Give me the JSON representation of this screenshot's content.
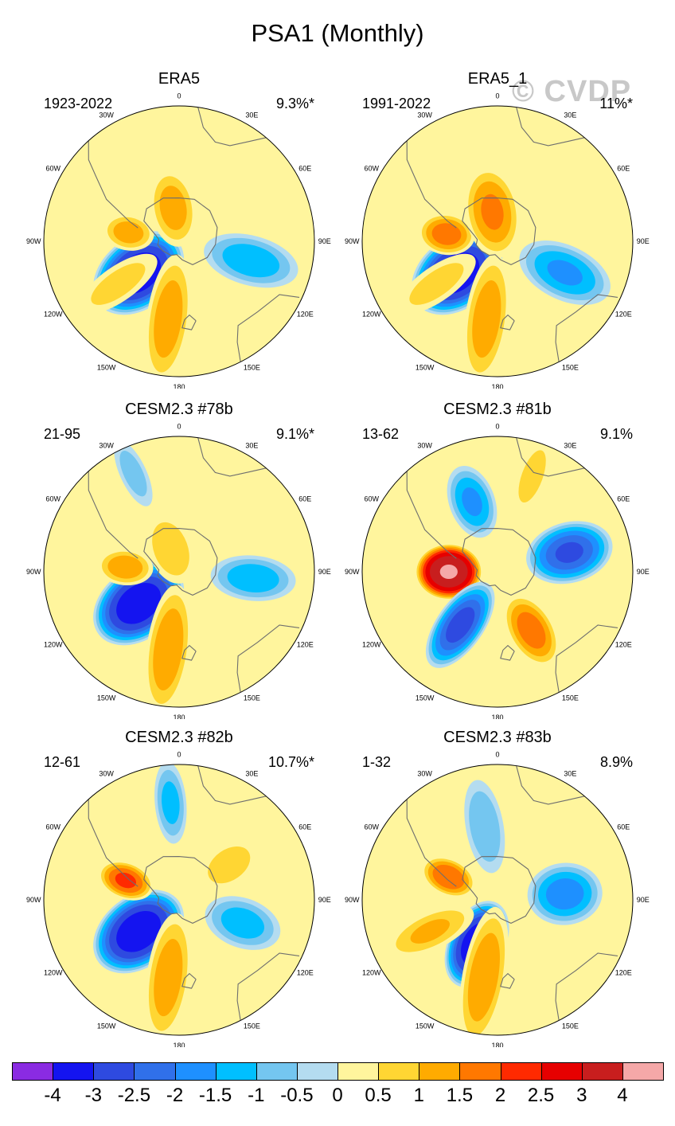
{
  "title": "PSA1 (Monthly)",
  "watermark": "© CVDP",
  "colors": {
    "levels": [
      "#8a2be2",
      "#1414f0",
      "#2e4ae0",
      "#3070ea",
      "#1e90ff",
      "#00bfff",
      "#74c6f0",
      "#b4dcf0",
      "#fff59d",
      "#ffd633",
      "#ffab00",
      "#ff7800",
      "#ff2a00",
      "#e60000",
      "#c81e1e",
      "#f5a8a8"
    ],
    "coast": "#6e6e6e"
  },
  "lon_labels": [
    "0",
    "30E",
    "60E",
    "90E",
    "120E",
    "150E",
    "180",
    "150W",
    "120W",
    "90W",
    "60W",
    "30W"
  ],
  "panels": [
    {
      "id": "era5",
      "title": "ERA5",
      "period": "1923-2022",
      "pct": "9.3%*",
      "blobs": [
        {
          "lon": -128,
          "r": 0.38,
          "rx": 0.4,
          "ry": 0.28,
          "v": -4.2
        },
        {
          "lon": -172,
          "r": 0.58,
          "rx": 0.55,
          "ry": 0.17,
          "v": 1.6
        },
        {
          "lon": -80,
          "r": 0.38,
          "rx": 0.2,
          "ry": 0.14,
          "v": 1.5
        },
        {
          "lon": -10,
          "r": 0.25,
          "rx": 0.32,
          "ry": 0.18,
          "v": 1.5
        },
        {
          "lon": 105,
          "r": 0.55,
          "rx": 0.4,
          "ry": 0.2,
          "v": -1.6
        },
        {
          "lon": -125,
          "r": 0.55,
          "rx": 0.4,
          "ry": 0.14,
          "v": 1.0
        }
      ]
    },
    {
      "id": "era5_1",
      "title": "ERA5_1",
      "period": "1991-2022",
      "pct": "11%*",
      "blobs": [
        {
          "lon": -128,
          "r": 0.38,
          "rx": 0.4,
          "ry": 0.28,
          "v": -4.2
        },
        {
          "lon": -172,
          "r": 0.58,
          "rx": 0.55,
          "ry": 0.17,
          "v": 1.6
        },
        {
          "lon": -82,
          "r": 0.38,
          "rx": 0.22,
          "ry": 0.16,
          "v": 2.0
        },
        {
          "lon": -10,
          "r": 0.22,
          "rx": 0.38,
          "ry": 0.22,
          "v": 1.8
        },
        {
          "lon": 115,
          "r": 0.55,
          "rx": 0.4,
          "ry": 0.22,
          "v": -1.8
        },
        {
          "lon": -125,
          "r": 0.55,
          "rx": 0.4,
          "ry": 0.14,
          "v": 1.0
        }
      ]
    },
    {
      "id": "78b",
      "title": "CESM2.3 #78b",
      "period": "21-95",
      "pct": "9.1%*",
      "blobs": [
        {
          "lon": -128,
          "r": 0.38,
          "rx": 0.4,
          "ry": 0.28,
          "v": -4.2
        },
        {
          "lon": -172,
          "r": 0.58,
          "rx": 0.55,
          "ry": 0.17,
          "v": 1.7
        },
        {
          "lon": -85,
          "r": 0.4,
          "rx": 0.22,
          "ry": 0.14,
          "v": 1.6
        },
        {
          "lon": -20,
          "r": 0.18,
          "rx": 0.3,
          "ry": 0.18,
          "v": 1.2
        },
        {
          "lon": 95,
          "r": 0.55,
          "rx": 0.35,
          "ry": 0.18,
          "v": -1.6
        },
        {
          "lon": -25,
          "r": 0.8,
          "rx": 0.3,
          "ry": 0.1,
          "v": -1.0
        }
      ]
    },
    {
      "id": "81b",
      "title": "CESM2.3 #81b",
      "period": "13-62",
      "pct": "9.1%",
      "blobs": [
        {
          "lon": -90,
          "r": 0.36,
          "rx": 0.26,
          "ry": 0.22,
          "v": 4.5
        },
        {
          "lon": -145,
          "r": 0.48,
          "rx": 0.4,
          "ry": 0.18,
          "v": -3.0
        },
        {
          "lon": 75,
          "r": 0.55,
          "rx": 0.35,
          "ry": 0.24,
          "v": -2.8
        },
        {
          "lon": -20,
          "r": 0.55,
          "rx": 0.3,
          "ry": 0.18,
          "v": -1.8
        },
        {
          "lon": 150,
          "r": 0.5,
          "rx": 0.32,
          "ry": 0.18,
          "v": 2.0
        },
        {
          "lon": 20,
          "r": 0.75,
          "rx": 0.3,
          "ry": 0.1,
          "v": 1.2
        }
      ]
    },
    {
      "id": "82b",
      "title": "CESM2.3 #82b",
      "period": "12-61",
      "pct": "10.7%*",
      "blobs": [
        {
          "lon": -128,
          "r": 0.38,
          "rx": 0.4,
          "ry": 0.28,
          "v": -4.2
        },
        {
          "lon": -172,
          "r": 0.58,
          "rx": 0.55,
          "ry": 0.17,
          "v": 1.6
        },
        {
          "lon": -70,
          "r": 0.42,
          "rx": 0.22,
          "ry": 0.14,
          "v": 2.3
        },
        {
          "lon": 55,
          "r": 0.45,
          "rx": 0.25,
          "ry": 0.16,
          "v": 1.2
        },
        {
          "lon": 110,
          "r": 0.5,
          "rx": 0.32,
          "ry": 0.2,
          "v": -1.5
        },
        {
          "lon": -5,
          "r": 0.72,
          "rx": 0.34,
          "ry": 0.12,
          "v": -1.4
        }
      ]
    },
    {
      "id": "83b",
      "title": "CESM2.3 #83b",
      "period": "1-32",
      "pct": "8.9%",
      "blobs": [
        {
          "lon": -155,
          "r": 0.36,
          "rx": 0.36,
          "ry": 0.22,
          "v": -4.2
        },
        {
          "lon": -170,
          "r": 0.58,
          "rx": 0.6,
          "ry": 0.17,
          "v": 1.7
        },
        {
          "lon": -65,
          "r": 0.4,
          "rx": 0.22,
          "ry": 0.14,
          "v": 2.2
        },
        {
          "lon": 85,
          "r": 0.5,
          "rx": 0.3,
          "ry": 0.25,
          "v": -2.0
        },
        {
          "lon": -10,
          "r": 0.55,
          "rx": 0.4,
          "ry": 0.15,
          "v": -1.2
        },
        {
          "lon": -115,
          "r": 0.55,
          "rx": 0.4,
          "ry": 0.15,
          "v": 1.3
        }
      ]
    }
  ],
  "colorbar": {
    "labels": [
      "-4",
      "-3",
      "-2.5",
      "-2",
      "-1.5",
      "-1",
      "-0.5",
      "0",
      "0.5",
      "1",
      "1.5",
      "2",
      "2.5",
      "3",
      "4"
    ]
  }
}
